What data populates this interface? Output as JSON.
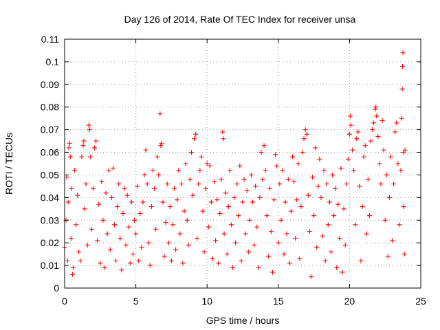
{
  "chart_data": {
    "type": "scatter",
    "title": "Day 126 of 2014, Rate Of TEC Index for receiver unsa",
    "xlabel": "GPS time / hours",
    "ylabel": "ROTI / TECUs",
    "xlim": [
      0,
      25
    ],
    "ylim": [
      0,
      0.11
    ],
    "x_ticks": [
      "0",
      "5",
      "10",
      "15",
      "20",
      "25"
    ],
    "y_ticks": [
      "0",
      "0.01",
      "0.02",
      "0.03",
      "0.04",
      "0.05",
      "0.06",
      "0.07",
      "0.08",
      "0.09",
      "0.1",
      "0.11"
    ],
    "grid": true,
    "legend": "none",
    "marker": "plus",
    "color": "#ff0000",
    "points": [
      [
        0.0,
        0.018
      ],
      [
        0.1,
        0.03
      ],
      [
        0.15,
        0.049
      ],
      [
        0.2,
        0.012
      ],
      [
        0.25,
        0.038
      ],
      [
        0.3,
        0.062
      ],
      [
        0.35,
        0.064
      ],
      [
        0.4,
        0.058
      ],
      [
        0.45,
        0.022
      ],
      [
        0.5,
        0.044
      ],
      [
        0.55,
        0.006
      ],
      [
        0.6,
        0.009
      ],
      [
        0.7,
        0.052
      ],
      [
        0.8,
        0.028
      ],
      [
        0.9,
        0.041
      ],
      [
        1.0,
        0.016
      ],
      [
        1.1,
        0.012
      ],
      [
        1.2,
        0.058
      ],
      [
        1.3,
        0.063
      ],
      [
        1.35,
        0.065
      ],
      [
        1.4,
        0.035
      ],
      [
        1.5,
        0.046
      ],
      [
        1.6,
        0.019
      ],
      [
        1.7,
        0.072
      ],
      [
        1.75,
        0.07
      ],
      [
        1.8,
        0.058
      ],
      [
        1.9,
        0.026
      ],
      [
        2.0,
        0.044
      ],
      [
        2.1,
        0.062
      ],
      [
        2.2,
        0.065
      ],
      [
        2.3,
        0.021
      ],
      [
        2.4,
        0.037
      ],
      [
        2.5,
        0.011
      ],
      [
        2.6,
        0.047
      ],
      [
        2.7,
        0.03
      ],
      [
        2.8,
        0.009
      ],
      [
        2.9,
        0.042
      ],
      [
        3.0,
        0.024
      ],
      [
        3.1,
        0.052
      ],
      [
        3.2,
        0.017
      ],
      [
        3.3,
        0.04
      ],
      [
        3.4,
        0.053
      ],
      [
        3.5,
        0.028
      ],
      [
        3.6,
        0.012
      ],
      [
        3.7,
        0.036
      ],
      [
        3.8,
        0.046
      ],
      [
        3.9,
        0.022
      ],
      [
        4.0,
        0.008
      ],
      [
        4.1,
        0.033
      ],
      [
        4.2,
        0.044
      ],
      [
        4.3,
        0.019
      ],
      [
        4.4,
        0.041
      ],
      [
        4.5,
        0.027
      ],
      [
        4.6,
        0.011
      ],
      [
        4.7,
        0.038
      ],
      [
        4.8,
        0.015
      ],
      [
        4.9,
        0.03
      ],
      [
        5.0,
        0.024
      ],
      [
        5.1,
        0.045
      ],
      [
        5.2,
        0.012
      ],
      [
        5.3,
        0.033
      ],
      [
        5.4,
        0.018
      ],
      [
        5.5,
        0.038
      ],
      [
        5.6,
        0.05
      ],
      [
        5.7,
        0.061
      ],
      [
        5.8,
        0.046
      ],
      [
        5.9,
        0.02
      ],
      [
        6.0,
        0.01
      ],
      [
        6.1,
        0.036
      ],
      [
        6.2,
        0.052
      ],
      [
        6.3,
        0.044
      ],
      [
        6.4,
        0.026
      ],
      [
        6.5,
        0.058
      ],
      [
        6.6,
        0.05
      ],
      [
        6.7,
        0.077
      ],
      [
        6.75,
        0.063
      ],
      [
        6.8,
        0.064
      ],
      [
        6.9,
        0.038
      ],
      [
        7.0,
        0.014
      ],
      [
        7.1,
        0.029
      ],
      [
        7.2,
        0.046
      ],
      [
        7.3,
        0.02
      ],
      [
        7.4,
        0.036
      ],
      [
        7.5,
        0.012
      ],
      [
        7.6,
        0.028
      ],
      [
        7.7,
        0.044
      ],
      [
        7.8,
        0.017
      ],
      [
        7.9,
        0.039
      ],
      [
        8.0,
        0.052
      ],
      [
        8.1,
        0.024
      ],
      [
        8.2,
        0.046
      ],
      [
        8.3,
        0.011
      ],
      [
        8.4,
        0.034
      ],
      [
        8.5,
        0.055
      ],
      [
        8.6,
        0.03
      ],
      [
        8.7,
        0.019
      ],
      [
        8.8,
        0.048
      ],
      [
        8.9,
        0.06
      ],
      [
        9.0,
        0.041
      ],
      [
        9.1,
        0.066
      ],
      [
        9.2,
        0.068
      ],
      [
        9.3,
        0.022
      ],
      [
        9.4,
        0.046
      ],
      [
        9.5,
        0.052
      ],
      [
        9.6,
        0.058
      ],
      [
        9.7,
        0.034
      ],
      [
        9.8,
        0.016
      ],
      [
        9.9,
        0.044
      ],
      [
        10.0,
        0.055
      ],
      [
        10.1,
        0.027
      ],
      [
        10.2,
        0.054
      ],
      [
        10.3,
        0.038
      ],
      [
        10.4,
        0.013
      ],
      [
        10.5,
        0.047
      ],
      [
        10.6,
        0.021
      ],
      [
        10.7,
        0.039
      ],
      [
        10.8,
        0.011
      ],
      [
        10.9,
        0.033
      ],
      [
        11.0,
        0.048
      ],
      [
        11.1,
        0.069
      ],
      [
        11.15,
        0.066
      ],
      [
        11.2,
        0.024
      ],
      [
        11.3,
        0.042
      ],
      [
        11.4,
        0.015
      ],
      [
        11.5,
        0.036
      ],
      [
        11.6,
        0.052
      ],
      [
        11.7,
        0.028
      ],
      [
        11.8,
        0.009
      ],
      [
        11.9,
        0.04
      ],
      [
        12.0,
        0.02
      ],
      [
        12.1,
        0.046
      ],
      [
        12.2,
        0.032
      ],
      [
        12.3,
        0.054
      ],
      [
        12.4,
        0.012
      ],
      [
        12.5,
        0.038
      ],
      [
        12.6,
        0.048
      ],
      [
        12.7,
        0.024
      ],
      [
        12.8,
        0.043
      ],
      [
        12.9,
        0.016
      ],
      [
        13.0,
        0.03
      ],
      [
        13.1,
        0.05
      ],
      [
        13.2,
        0.038
      ],
      [
        13.3,
        0.019
      ],
      [
        13.4,
        0.045
      ],
      [
        13.5,
        0.027
      ],
      [
        13.6,
        0.009
      ],
      [
        13.7,
        0.04
      ],
      [
        13.8,
        0.06
      ],
      [
        13.9,
        0.048
      ],
      [
        14.0,
        0.063
      ],
      [
        14.1,
        0.052
      ],
      [
        14.2,
        0.032
      ],
      [
        14.3,
        0.014
      ],
      [
        14.4,
        0.044
      ],
      [
        14.5,
        0.025
      ],
      [
        14.6,
        0.007
      ],
      [
        14.7,
        0.039
      ],
      [
        14.8,
        0.059
      ],
      [
        14.9,
        0.054
      ],
      [
        15.0,
        0.02
      ],
      [
        15.1,
        0.046
      ],
      [
        15.2,
        0.03
      ],
      [
        15.3,
        0.052
      ],
      [
        15.4,
        0.015
      ],
      [
        15.5,
        0.038
      ],
      [
        15.6,
        0.024
      ],
      [
        15.7,
        0.048
      ],
      [
        15.8,
        0.011
      ],
      [
        15.9,
        0.034
      ],
      [
        16.0,
        0.058
      ],
      [
        16.1,
        0.047
      ],
      [
        16.2,
        0.022
      ],
      [
        16.3,
        0.039
      ],
      [
        16.4,
        0.055
      ],
      [
        16.5,
        0.013
      ],
      [
        16.6,
        0.036
      ],
      [
        16.7,
        0.06
      ],
      [
        16.8,
        0.066
      ],
      [
        16.9,
        0.07
      ],
      [
        17.0,
        0.068
      ],
      [
        17.1,
        0.041
      ],
      [
        17.2,
        0.025
      ],
      [
        17.3,
        0.005
      ],
      [
        17.4,
        0.049
      ],
      [
        17.5,
        0.032
      ],
      [
        17.6,
        0.062
      ],
      [
        17.7,
        0.018
      ],
      [
        17.8,
        0.045
      ],
      [
        17.9,
        0.057
      ],
      [
        18.0,
        0.04
      ],
      [
        18.1,
        0.023
      ],
      [
        18.2,
        0.052
      ],
      [
        18.3,
        0.012
      ],
      [
        18.4,
        0.046
      ],
      [
        18.5,
        0.028
      ],
      [
        18.6,
        0.038
      ],
      [
        18.7,
        0.016
      ],
      [
        18.8,
        0.05
      ],
      [
        18.9,
        0.032
      ],
      [
        19.0,
        0.044
      ],
      [
        19.1,
        0.009
      ],
      [
        19.2,
        0.037
      ],
      [
        19.3,
        0.022
      ],
      [
        19.4,
        0.053
      ],
      [
        19.5,
        0.007
      ],
      [
        19.6,
        0.035
      ],
      [
        19.7,
        0.019
      ],
      [
        19.8,
        0.046
      ],
      [
        19.9,
        0.057
      ],
      [
        20.0,
        0.068
      ],
      [
        20.05,
        0.076
      ],
      [
        20.1,
        0.072
      ],
      [
        20.2,
        0.061
      ],
      [
        20.3,
        0.052
      ],
      [
        20.4,
        0.028
      ],
      [
        20.5,
        0.066
      ],
      [
        20.6,
        0.069
      ],
      [
        20.7,
        0.045
      ],
      [
        20.8,
        0.012
      ],
      [
        20.9,
        0.036
      ],
      [
        21.0,
        0.058
      ],
      [
        21.1,
        0.063
      ],
      [
        21.2,
        0.024
      ],
      [
        21.3,
        0.048
      ],
      [
        21.4,
        0.032
      ],
      [
        21.5,
        0.065
      ],
      [
        21.6,
        0.07
      ],
      [
        21.7,
        0.073
      ],
      [
        21.8,
        0.079
      ],
      [
        21.85,
        0.08
      ],
      [
        21.9,
        0.076
      ],
      [
        22.0,
        0.067
      ],
      [
        22.1,
        0.055
      ],
      [
        22.2,
        0.046
      ],
      [
        22.3,
        0.074
      ],
      [
        22.4,
        0.061
      ],
      [
        22.5,
        0.03
      ],
      [
        22.6,
        0.05
      ],
      [
        22.7,
        0.014
      ],
      [
        22.8,
        0.04
      ],
      [
        22.9,
        0.058
      ],
      [
        23.0,
        0.021
      ],
      [
        23.1,
        0.046
      ],
      [
        23.2,
        0.069
      ],
      [
        23.3,
        0.073
      ],
      [
        23.4,
        0.055
      ],
      [
        23.5,
        0.028
      ],
      [
        23.6,
        0.052
      ],
      [
        23.65,
        0.075
      ],
      [
        23.7,
        0.088
      ],
      [
        23.72,
        0.098
      ],
      [
        23.75,
        0.104
      ],
      [
        23.78,
        0.06
      ],
      [
        23.8,
        0.036
      ],
      [
        23.85,
        0.015
      ],
      [
        23.9,
        0.061
      ]
    ]
  }
}
